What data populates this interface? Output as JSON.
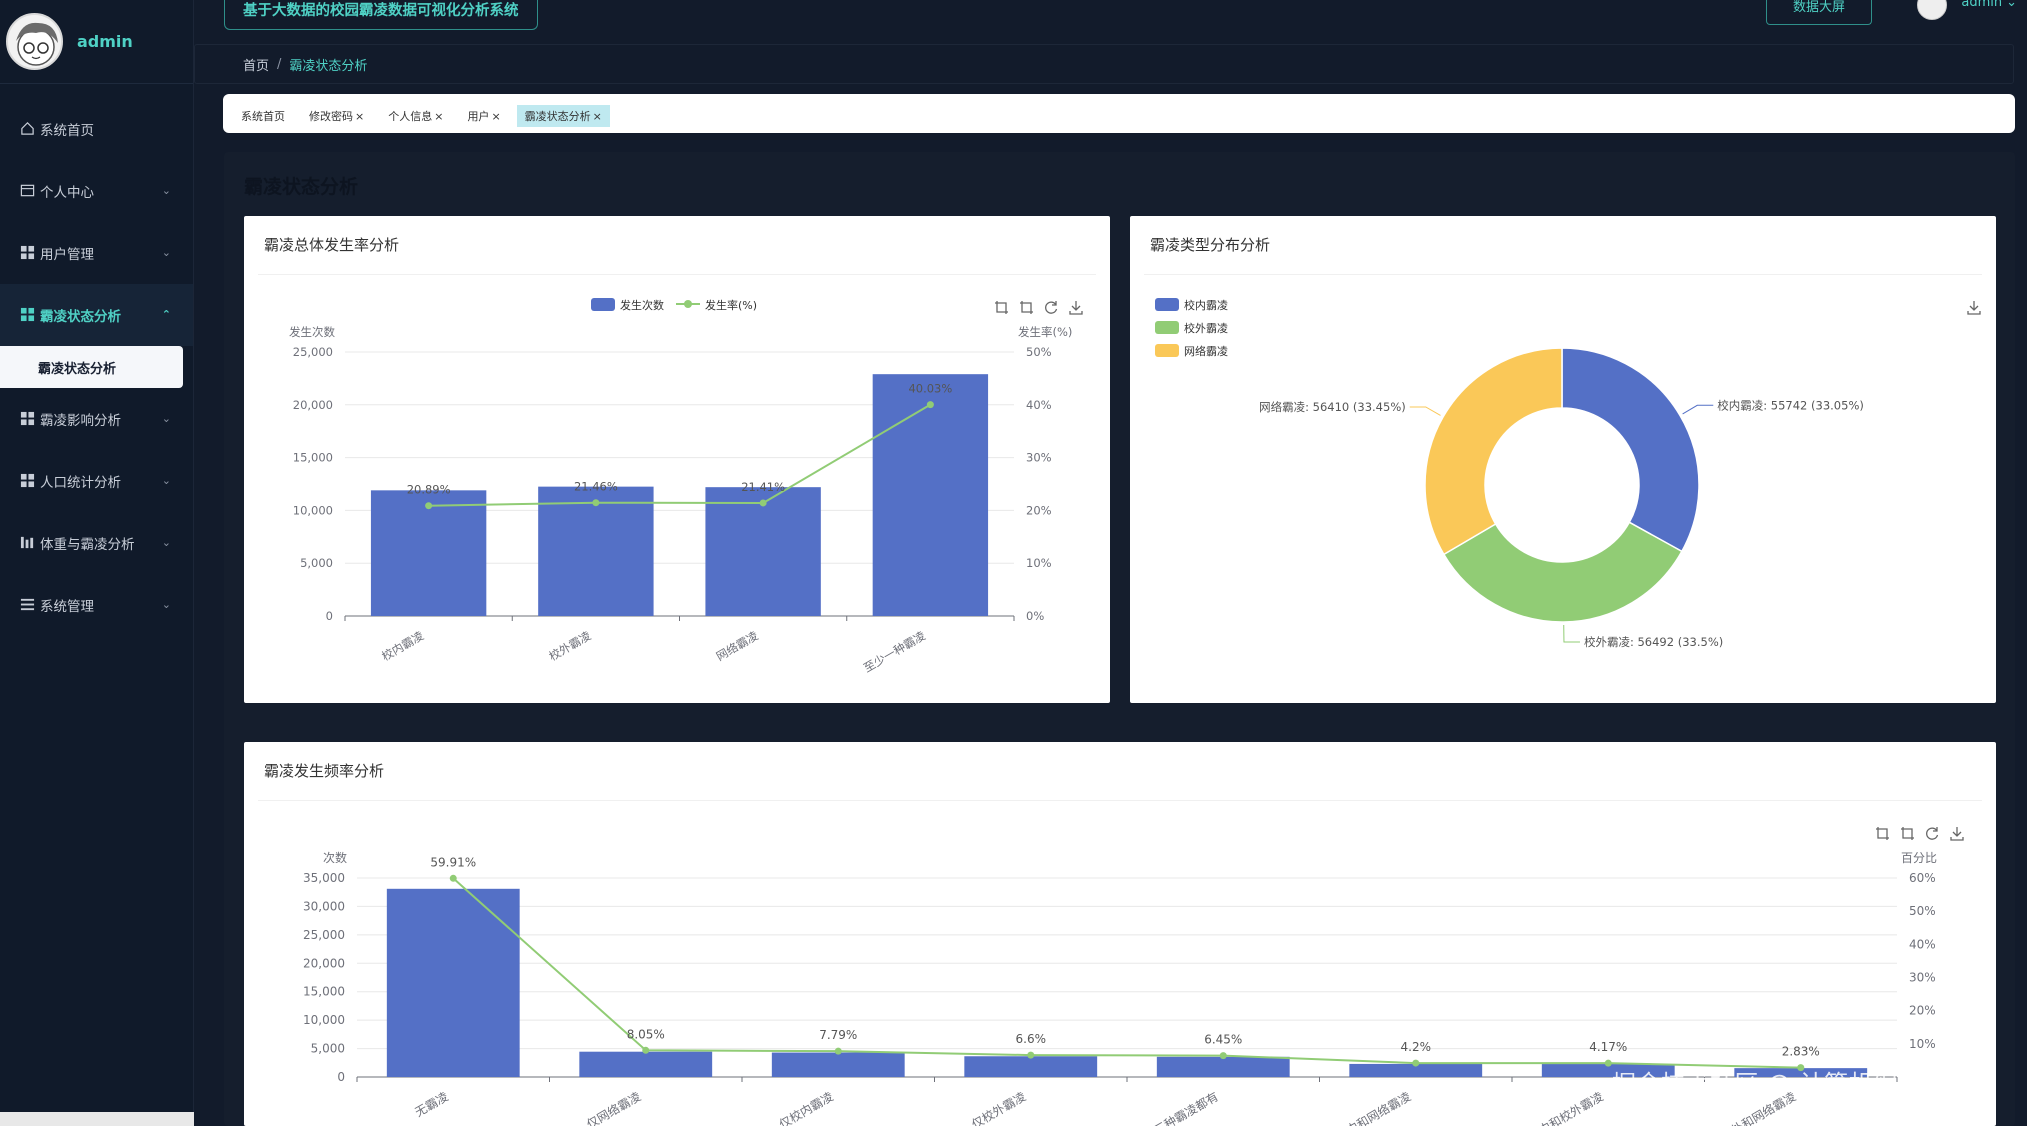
{
  "sidebar": {
    "brand": "admin",
    "items": [
      {
        "label": "系统首页",
        "icon": "home-icon"
      },
      {
        "label": "个人中心",
        "icon": "id-card-icon"
      },
      {
        "label": "用户管理",
        "icon": "grid-icon"
      },
      {
        "label": "霸凌状态分析",
        "icon": "grid-icon"
      },
      {
        "label": "霸凌状态分析",
        "sub": true
      },
      {
        "label": "霸凌影响分析",
        "icon": "grid-icon"
      },
      {
        "label": "人口统计分析",
        "icon": "grid-icon"
      },
      {
        "label": "体重与霸凌分析",
        "icon": "bar-chart-icon"
      },
      {
        "label": "系统管理",
        "icon": "list-icon"
      }
    ]
  },
  "topbar": {
    "title": "基于大数据的校园霸凌数据可视化分析系统",
    "bigscreen": "数据大屏",
    "user": "admin"
  },
  "breadcrumb": {
    "home": "首页",
    "sep": "/",
    "current": "霸凌状态分析"
  },
  "tabs": [
    "系统首页",
    "修改密码",
    "个人信息",
    "用户",
    "霸凌状态分析"
  ],
  "page_title": "霸凌状态分析",
  "colors": {
    "blue": "#5470c6",
    "green": "#91cc75",
    "yellow": "#fac858",
    "accent": "#4fd1c5"
  },
  "watermark": "掘金技术社区 @ 计算机编程指导师",
  "chart_data": [
    {
      "type": "bar",
      "title": "霸凌总体发生率分析",
      "categories": [
        "校内霸凌",
        "校外霸凌",
        "网络霸凌",
        "至少一种霸凌"
      ],
      "series": [
        {
          "name": "发生次数",
          "type": "bar",
          "values": [
            11900,
            12250,
            12200,
            22900
          ]
        },
        {
          "name": "发生率(%)",
          "type": "line",
          "values": [
            20.89,
            21.46,
            21.41,
            40.03
          ],
          "labels": [
            "20.89%",
            "21.46%",
            "21.41%",
            "40.03%"
          ]
        }
      ],
      "ylabel": "发生次数",
      "y2label": "发生率(%)",
      "ylim": [
        0,
        25000
      ],
      "yticks": [
        "0",
        "5,000",
        "10,000",
        "15,000",
        "20,000",
        "25,000"
      ],
      "y2lim": [
        0,
        50
      ],
      "y2ticks": [
        "0%",
        "10%",
        "20%",
        "30%",
        "40%",
        "50%"
      ]
    },
    {
      "type": "pie",
      "title": "霸凌类型分布分析",
      "legend": [
        "校内霸凌",
        "校外霸凌",
        "网络霸凌"
      ],
      "slices": [
        {
          "name": "校内霸凌",
          "value": 55742,
          "pct": 33.05,
          "label": "校内霸凌: 55742 (33.05%)"
        },
        {
          "name": "校外霸凌",
          "value": 56492,
          "pct": 33.5,
          "label": "校外霸凌: 56492 (33.5%)"
        },
        {
          "name": "网络霸凌",
          "value": 56410,
          "pct": 33.45,
          "label": "网络霸凌: 56410 (33.45%)"
        }
      ]
    },
    {
      "type": "bar",
      "title": "霸凌发生频率分析",
      "categories": [
        "无霸凌",
        "仅网络霸凌",
        "仅校内霸凌",
        "仅校外霸凌",
        "三种霸凌都有",
        "校内和网络霸凌",
        "校内和校外霸凌",
        "校外和网络霸凌"
      ],
      "series": [
        {
          "name": "次数",
          "type": "bar",
          "values": [
            33100,
            4450,
            4300,
            3650,
            3550,
            2300,
            2280,
            1560
          ]
        },
        {
          "name": "百分比",
          "type": "line",
          "values": [
            59.91,
            8.05,
            7.79,
            6.6,
            6.45,
            4.2,
            4.17,
            2.83
          ],
          "labels": [
            "59.91%",
            "8.05%",
            "7.79%",
            "6.6%",
            "6.45%",
            "4.2%",
            "4.17%",
            "2.83%"
          ]
        }
      ],
      "ylabel": "次数",
      "y2label": "百分比",
      "ylim": [
        0,
        35000
      ],
      "yticks": [
        "0",
        "5,000",
        "10,000",
        "15,000",
        "20,000",
        "25,000",
        "30,000",
        "35,000"
      ],
      "y2lim": [
        0,
        60
      ],
      "y2ticks": [
        "10%",
        "20%",
        "30%",
        "40%",
        "50%",
        "60%"
      ]
    }
  ]
}
